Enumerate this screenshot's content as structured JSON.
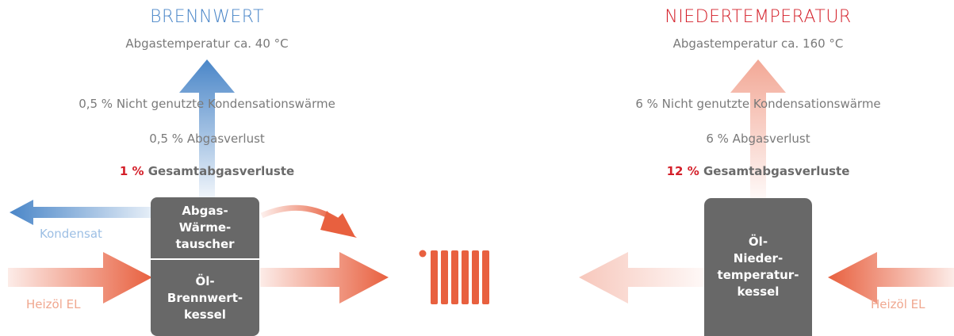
{
  "left": {
    "title": "BRENNWERT",
    "subtitle": "Abgastemperatur ca. 40 °C",
    "condensation_loss": "0,5 % Nicht genutzte Kondensationswärme",
    "exhaust_loss": "0,5 % Abgasverlust",
    "total_loss_value": "1 %",
    "total_loss_label": "Gesamtabgasverluste",
    "box_top_lines": [
      "Abgas-",
      "Wärme-",
      "tauscher"
    ],
    "box_bottom_lines": [
      "Öl-",
      "Brennwert-",
      "kessel"
    ],
    "condensate_label": "Kondensat",
    "fuel_label": "Heizöl EL"
  },
  "right": {
    "title": "NIEDERTEMPERATUR",
    "subtitle": "Abgastemperatur ca. 160 °C",
    "condensation_loss": "6 % Nicht genutzte Kondensationswärme",
    "exhaust_loss": "6 % Abgasverlust",
    "total_loss_value": "12 %",
    "total_loss_label": "Gesamtabgasverluste",
    "box_lines": [
      "Öl-",
      "Nieder-",
      "temperatur-",
      "kessel"
    ],
    "fuel_label": "Heizöl EL"
  },
  "colors": {
    "blue": "#4a86c8",
    "red": "#d4202a",
    "orange": "#e8603f",
    "box": "#686868"
  },
  "icons": {
    "center": "radiator-icon"
  }
}
